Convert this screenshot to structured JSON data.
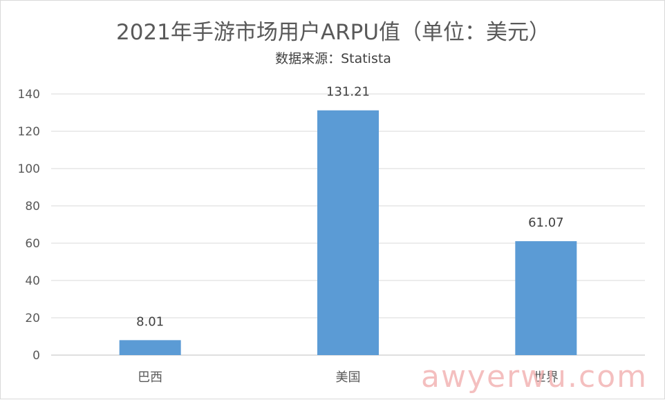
{
  "chart_data": {
    "type": "bar",
    "title": "2021年手游市场用户ARPU值（单位：美元）",
    "subtitle": "数据来源：Statista",
    "categories": [
      "巴西",
      "美国",
      "世界"
    ],
    "values": [
      8.01,
      131.21,
      61.07
    ],
    "data_labels": [
      "8.01",
      "131.21",
      "61.07"
    ],
    "ylim": [
      0,
      140
    ],
    "yticks": [
      0,
      20,
      40,
      60,
      80,
      100,
      120,
      140
    ],
    "xlabel": "",
    "ylabel": "",
    "grid": true,
    "legend": "none",
    "bar_color": "#5b9bd5",
    "grid_color": "#d9d9d9"
  },
  "watermark": "awyerwu.com"
}
